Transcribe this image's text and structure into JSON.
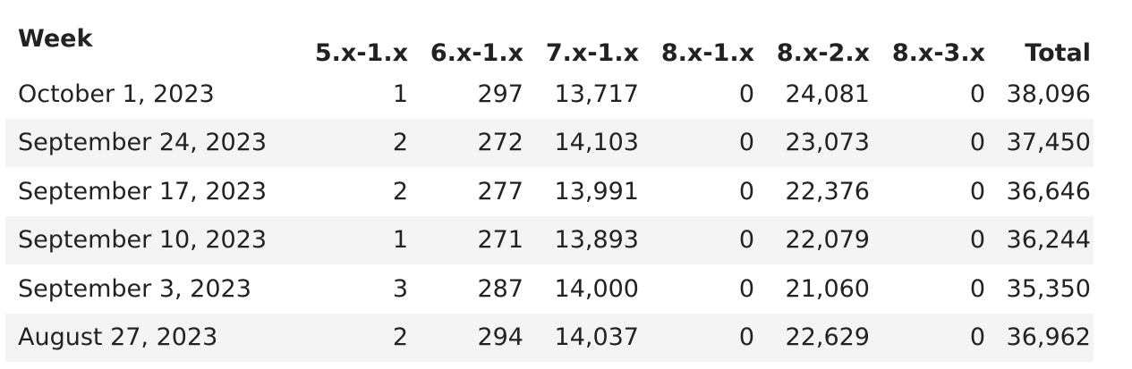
{
  "table": {
    "headers": [
      "Week",
      "5.x-1.x",
      "6.x-1.x",
      "7.x-1.x",
      "8.x-1.x",
      "8.x-2.x",
      "8.x-3.x",
      "Total"
    ],
    "rows": [
      [
        "October 1, 2023",
        "1",
        "297",
        "13,717",
        "0",
        "24,081",
        "0",
        "38,096"
      ],
      [
        "September 24, 2023",
        "2",
        "272",
        "14,103",
        "0",
        "23,073",
        "0",
        "37,450"
      ],
      [
        "September 17, 2023",
        "2",
        "277",
        "13,991",
        "0",
        "22,376",
        "0",
        "36,646"
      ],
      [
        "September 10, 2023",
        "1",
        "271",
        "13,893",
        "0",
        "22,079",
        "0",
        "36,244"
      ],
      [
        "September 3, 2023",
        "3",
        "287",
        "14,000",
        "0",
        "21,060",
        "0",
        "35,350"
      ],
      [
        "August 27, 2023",
        "2",
        "294",
        "14,037",
        "0",
        "22,629",
        "0",
        "36,962"
      ]
    ]
  }
}
